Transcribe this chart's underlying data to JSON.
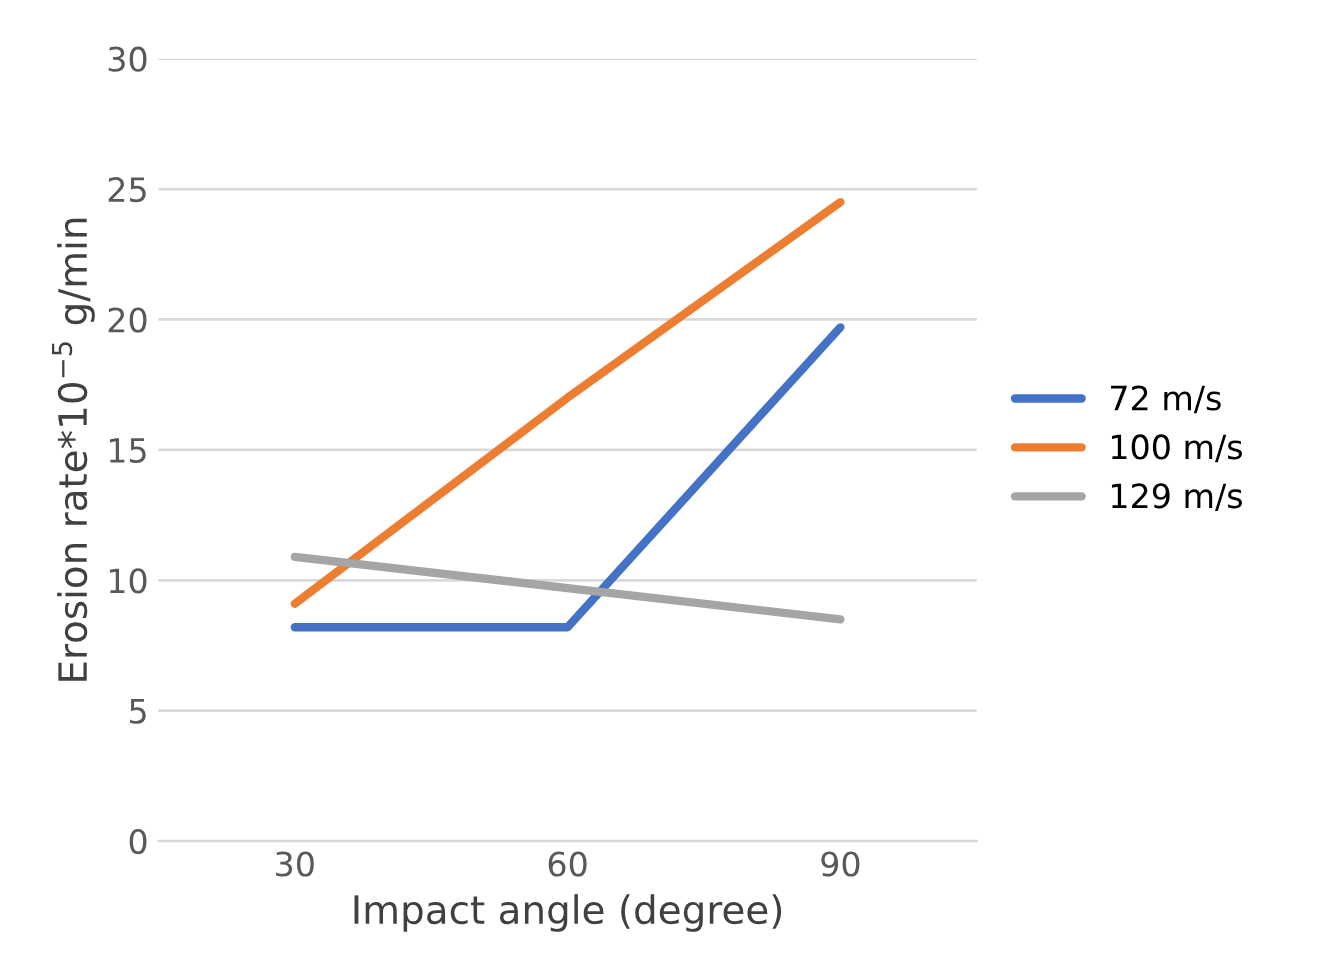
{
  "chart_data": {
    "type": "line",
    "xlabel": "Impact angle (degree)",
    "ylabel": "Erosion rate*10$^{−5}$ g/min",
    "categories": [
      "30",
      "60",
      "90"
    ],
    "series": [
      {
        "name": "72 m/s",
        "color": "#4472c4",
        "values": [
          8.2,
          8.2,
          19.7
        ]
      },
      {
        "name": "100 m/s",
        "color": "#ed7d31",
        "values": [
          9.1,
          17.0,
          24.5
        ]
      },
      {
        "name": "129 m/s",
        "color": "#a5a5a5",
        "values": [
          10.9,
          9.7,
          8.5
        ]
      }
    ],
    "ylim": [
      0,
      30
    ],
    "yticks": [
      0,
      5,
      10,
      15,
      20,
      25,
      30
    ],
    "grid": "y",
    "legend": "right",
    "marker": "none",
    "line_style": "solid"
  }
}
